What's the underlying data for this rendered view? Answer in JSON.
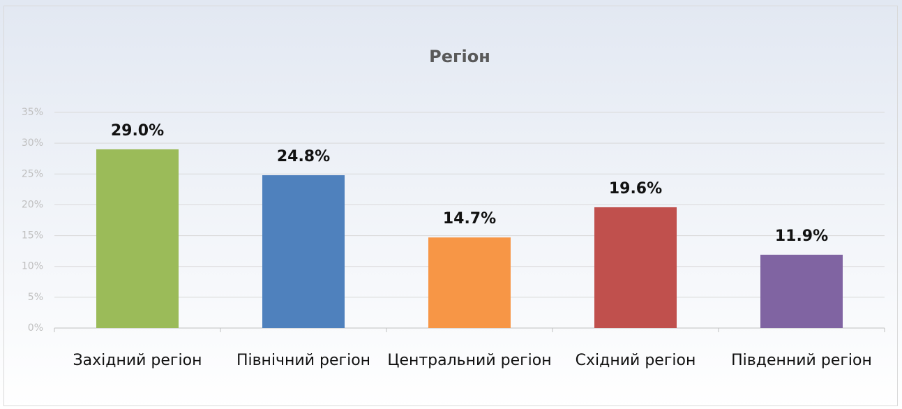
{
  "chart_data": {
    "type": "bar",
    "title": "Регіон",
    "categories": [
      "Західний регіон",
      "Північний регіон",
      "Центральний регіон",
      "Східний регіон",
      "Південний регіон"
    ],
    "values": [
      29.0,
      24.8,
      14.7,
      19.6,
      11.9
    ],
    "value_labels": [
      "29.0%",
      "24.8%",
      "14.7%",
      "19.6%",
      "11.9%"
    ],
    "colors": [
      "#9bbb59",
      "#4f81bd",
      "#f79646",
      "#c0504d",
      "#8064a2"
    ],
    "ylim": [
      0,
      35
    ],
    "yticks": [
      {
        "value": 0,
        "label": "0%"
      },
      {
        "value": 5,
        "label": "5%"
      },
      {
        "value": 10,
        "label": "10%"
      },
      {
        "value": 15,
        "label": "15%"
      },
      {
        "value": 20,
        "label": "20%"
      },
      {
        "value": 25,
        "label": "25%"
      },
      {
        "value": 30,
        "label": "30%"
      },
      {
        "value": 35,
        "label": "35%"
      }
    ],
    "grid": true
  }
}
